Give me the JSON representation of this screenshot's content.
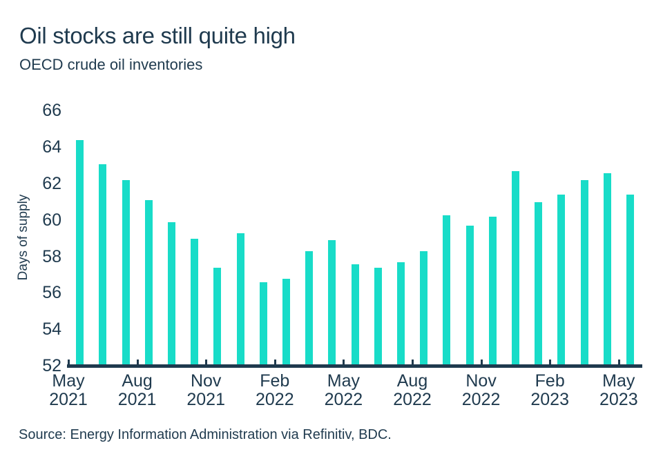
{
  "header": {
    "title": "Oil stocks are still quite high",
    "subtitle": "OECD crude oil inventories"
  },
  "footer": {
    "source": "Source: Energy Information Administration via Refinitiv, BDC."
  },
  "colors": {
    "bar_teal": "#18DCC8",
    "text_navy": "#1F3A4E"
  },
  "chart_data": {
    "type": "bar",
    "title": "Oil stocks are still quite high",
    "subtitle": "OECD crude oil inventories",
    "ylabel": "Days of supply",
    "xlabel": "",
    "ylim": [
      52,
      66
    ],
    "yticks": [
      52,
      54,
      56,
      58,
      60,
      62,
      64,
      66
    ],
    "grid": false,
    "legend": false,
    "categories": [
      "May 2021",
      "Jun 2021",
      "Jul 2021",
      "Aug 2021",
      "Sep 2021",
      "Oct 2021",
      "Nov 2021",
      "Dec 2021",
      "Jan 2022",
      "Feb 2022",
      "Mar 2022",
      "Apr 2022",
      "May 2022",
      "Jun 2022",
      "Jul 2022",
      "Aug 2022",
      "Sep 2022",
      "Oct 2022",
      "Nov 2022",
      "Dec 2022",
      "Jan 2023",
      "Feb 2023",
      "Mar 2023",
      "Apr 2023",
      "May 2023"
    ],
    "values": [
      64.3,
      63.0,
      62.1,
      61.0,
      59.8,
      58.9,
      57.3,
      59.2,
      56.5,
      56.7,
      58.2,
      58.8,
      57.5,
      57.3,
      57.6,
      58.2,
      60.2,
      59.6,
      60.1,
      62.6,
      60.9,
      61.3,
      62.1,
      62.5,
      61.3
    ],
    "xtick_every": 3,
    "xtick_labels": [
      [
        "May",
        "2021"
      ],
      [
        "Aug",
        "2021"
      ],
      [
        "Nov",
        "2021"
      ],
      [
        "Feb",
        "2022"
      ],
      [
        "May",
        "2022"
      ],
      [
        "Aug",
        "2022"
      ],
      [
        "Nov",
        "2022"
      ],
      [
        "Feb",
        "2023"
      ],
      [
        "May",
        "2023"
      ]
    ]
  }
}
